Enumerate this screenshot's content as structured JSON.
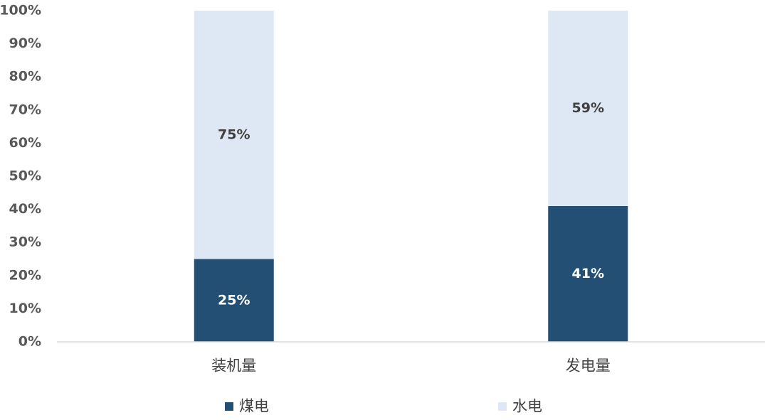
{
  "chart_data": {
    "type": "bar",
    "stacked": true,
    "categories": [
      "装机量",
      "发电量"
    ],
    "series": [
      {
        "name": "煤电",
        "color": "#244f75",
        "values": [
          25,
          41
        ],
        "value_labels": [
          "25%",
          "41%"
        ]
      },
      {
        "name": "水电",
        "color": "#dde8f4",
        "values": [
          75,
          59
        ],
        "value_labels": [
          "75%",
          "59%"
        ]
      }
    ],
    "ylim": [
      0,
      100
    ],
    "yticks": [
      {
        "value": 0,
        "label": "0%"
      },
      {
        "value": 10,
        "label": "10%"
      },
      {
        "value": 20,
        "label": "20%"
      },
      {
        "value": 30,
        "label": "30%"
      },
      {
        "value": 40,
        "label": "40%"
      },
      {
        "value": 50,
        "label": "50%"
      },
      {
        "value": 60,
        "label": "60%"
      },
      {
        "value": 70,
        "label": "70%"
      },
      {
        "value": 80,
        "label": "80%"
      },
      {
        "value": 90,
        "label": "90%"
      },
      {
        "value": 100,
        "label": "100%"
      }
    ],
    "grid": false,
    "legend": "bottom"
  }
}
